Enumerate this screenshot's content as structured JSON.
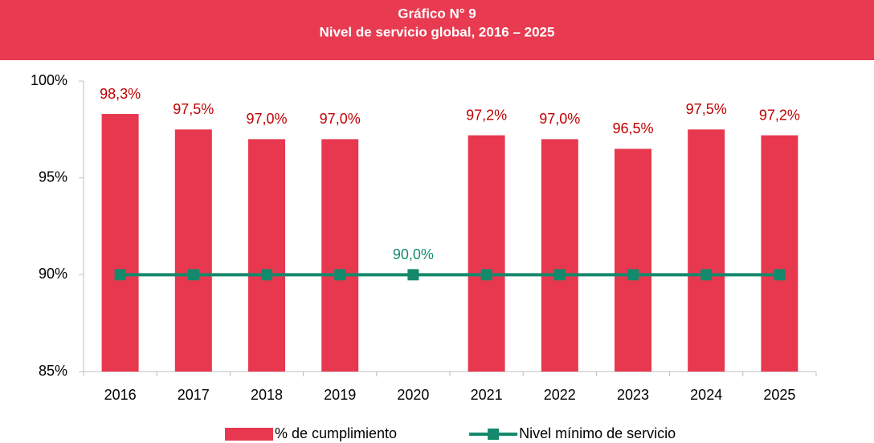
{
  "chart_data": {
    "type": "bar_line",
    "title": "Gráfico N° 9",
    "subtitle": "Nivel de servicio global, 2016 – 2025",
    "categories": [
      "2016",
      "2017",
      "2018",
      "2019",
      "2020",
      "2021",
      "2022",
      "2023",
      "2024",
      "2025"
    ],
    "series": [
      {
        "name": "% de cumplimiento",
        "type": "bar",
        "color": "#e8384f",
        "values": [
          98.3,
          97.5,
          97.0,
          97.0,
          null,
          97.2,
          97.0,
          96.5,
          97.5,
          97.2
        ],
        "value_labels": [
          "98,3%",
          "97,5%",
          "97,0%",
          "97,0%",
          null,
          "97,2%",
          "97,0%",
          "96,5%",
          "97,5%",
          "97,2%"
        ],
        "label_color": "#c00000"
      },
      {
        "name": "Nivel mínimo de servicio",
        "type": "line",
        "color": "#14896b",
        "values": [
          90,
          90,
          90,
          90,
          90,
          90,
          90,
          90,
          90,
          90
        ],
        "value_labels": [
          null,
          null,
          null,
          null,
          "90,0%",
          null,
          null,
          null,
          null,
          null
        ],
        "label_color": "#14896b"
      }
    ],
    "ylim": [
      85,
      100
    ],
    "yticks": [
      {
        "value": 85,
        "label": "85%"
      },
      {
        "value": 90,
        "label": "90%"
      },
      {
        "value": 95,
        "label": "95%"
      },
      {
        "value": 100,
        "label": "100%"
      }
    ],
    "grid": false,
    "legend": "bottom",
    "title_background": "#e83a50"
  }
}
